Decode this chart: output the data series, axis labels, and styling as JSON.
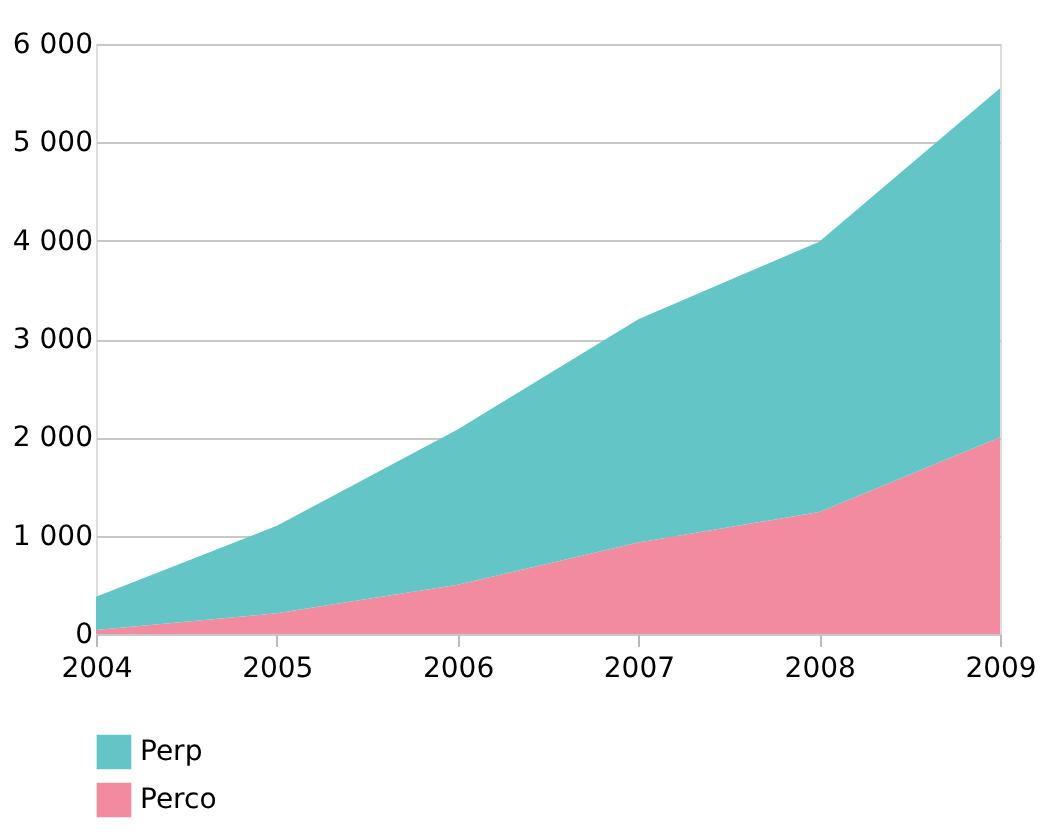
{
  "chart_data": {
    "type": "area",
    "stacked": true,
    "x": [
      2004,
      2005,
      2006,
      2007,
      2008,
      2009
    ],
    "series": [
      {
        "name": "Perco",
        "color": "#f28ba0",
        "values": [
          40,
          210,
          500,
          930,
          1240,
          2000
        ]
      },
      {
        "name": "Perp",
        "color": "#64c5c6",
        "values": [
          340,
          890,
          1580,
          2270,
          2750,
          3550
        ]
      }
    ],
    "xlim": [
      2004,
      2009
    ],
    "xticks": [
      2004,
      2005,
      2006,
      2007,
      2008,
      2009
    ],
    "ylim": [
      0,
      6000
    ],
    "yticks": [
      0,
      {
        "value": 1000,
        "label": "1 000"
      },
      {
        "value": 2000,
        "label": "2 000"
      },
      {
        "value": 3000,
        "label": "3 000"
      },
      {
        "value": 4000,
        "label": "4 000"
      },
      {
        "value": 5000,
        "label": "5 000"
      },
      {
        "value": 6000,
        "label": "6 000"
      }
    ],
    "grid": "y",
    "legend": "bottom left"
  }
}
